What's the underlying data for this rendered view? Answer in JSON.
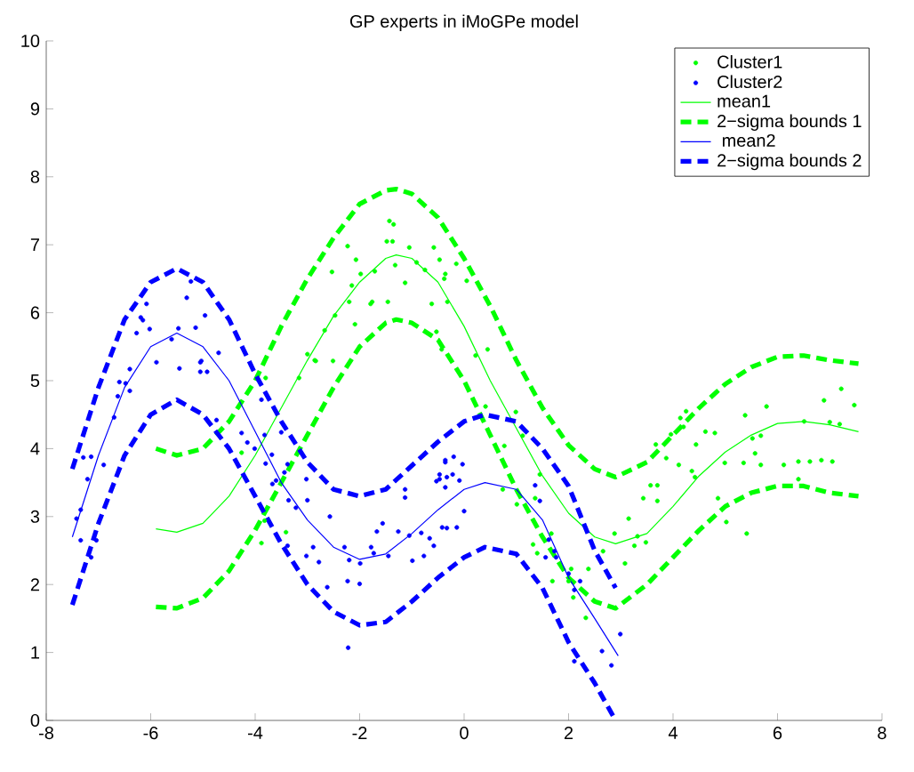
{
  "chart_data": {
    "type": "scatter",
    "title": "GP experts in iMoGPe model",
    "xlim": [
      -8,
      8
    ],
    "ylim": [
      0,
      10
    ],
    "xticks": [
      -8,
      -6,
      -4,
      -2,
      0,
      2,
      4,
      6,
      8
    ],
    "yticks": [
      0,
      1,
      2,
      3,
      4,
      5,
      6,
      7,
      8,
      9,
      10
    ],
    "legend": "top right",
    "grid": false,
    "series": [
      {
        "name": "Cluster1",
        "marker": "circle",
        "color": "#00ff00",
        "x": [
          -3.8,
          -3.36,
          -3.0,
          -2.86,
          -2.67,
          -2.53,
          -2.47,
          -2.23,
          -2.2,
          -2.15,
          -2.09,
          -2.07,
          -1.98,
          -1.76,
          -1.71,
          -1.79,
          -1.46,
          -1.48,
          -1.43,
          -1.35,
          -1.37,
          -1.32,
          -1.13,
          -1.05,
          -0.91,
          -0.75,
          -0.58,
          -0.62,
          -0.47,
          -0.36,
          -3.16,
          -0.15,
          -0.38,
          0.05,
          -0.32,
          -0.53,
          0.22,
          0.45,
          -0.43,
          0.41,
          0.77,
          0.99,
          1.12,
          0.74,
          1.01,
          1.36,
          1.45,
          1.32,
          1.4,
          1.67,
          1.69,
          2.0,
          2.09,
          2.33,
          2.05,
          2.38,
          2.66,
          2.88,
          3.08,
          3.15,
          3.26,
          3.32,
          3.48,
          3.43,
          3.57,
          3.7,
          3.7,
          3.67,
          3.87,
          3.96,
          4.14,
          4.25,
          4.2,
          4.11,
          4.36,
          4.42,
          4.44,
          4.62,
          4.8,
          4.86,
          5.02,
          4.99,
          5.38,
          5.35,
          5.41,
          5.52,
          5.57,
          5.68,
          5.68,
          5.79,
          6.12,
          6.4,
          6.4,
          6.51,
          6.62,
          6.84,
          6.89,
          7.05,
          7.0,
          7.19,
          7.22,
          7.47,
          -3.82,
          -3.88,
          -3.41,
          -4.26,
          -2.84,
          -2.51
        ],
        "values": [
          5.04,
          6.0,
          5.39,
          5.3,
          5.74,
          6.6,
          5.96,
          6.98,
          6.16,
          6.4,
          5.83,
          6.78,
          6.57,
          6.16,
          6.61,
          6.13,
          6.16,
          7.05,
          7.35,
          7.3,
          7.05,
          6.7,
          6.44,
          6.96,
          6.74,
          6.63,
          6.96,
          6.13,
          6.78,
          6.57,
          5.04,
          6.72,
          6.5,
          6.47,
          6.16,
          5.72,
          5.37,
          5.46,
          5.46,
          4.62,
          4.04,
          4.54,
          4.19,
          3.4,
          3.18,
          3.27,
          3.62,
          2.59,
          2.46,
          2.75,
          2.05,
          2.05,
          1.81,
          1.51,
          2.23,
          2.23,
          2.49,
          2.75,
          2.31,
          2.97,
          2.57,
          2.71,
          2.62,
          3.27,
          3.46,
          3.46,
          3.23,
          4.06,
          3.86,
          4.21,
          4.45,
          4.55,
          4.32,
          3.76,
          3.67,
          3.58,
          4.06,
          4.25,
          4.23,
          3.27,
          2.92,
          3.79,
          4.49,
          3.79,
          2.75,
          4.15,
          3.93,
          3.76,
          4.19,
          4.62,
          3.76,
          3.81,
          3.55,
          4.4,
          3.81,
          3.83,
          4.71,
          3.81,
          4.39,
          4.36,
          4.88,
          4.64,
          2.94,
          2.61,
          2.77,
          3.94,
          5.29,
          5.29
        ]
      },
      {
        "name": "Cluster2",
        "marker": "circle",
        "color": "#0000ff",
        "x": [
          -7.42,
          -7.34,
          -7.29,
          -7.14,
          -7.21,
          -7.34,
          -7.14,
          -7.04,
          -6.9,
          -6.7,
          -6.63,
          -6.6,
          -6.48,
          -6.4,
          -5.89,
          -5.45,
          -5.05,
          -4.92,
          -5.05,
          -4.74,
          -4.26,
          -4.15,
          -4.01,
          -3.88,
          -3.82,
          -3.8,
          -3.67,
          -3.68,
          -3.5,
          -3.6,
          -3.44,
          -3.38,
          -3.36,
          -3.22,
          -3.38,
          -3.02,
          -3.0,
          -3.02,
          -2.89,
          -2.78,
          -2.57,
          -2.62,
          -2.29,
          -2.23,
          -2.2,
          -2.22,
          -2.0,
          -1.99,
          -1.78,
          -1.73,
          -1.67,
          -1.56,
          -1.45,
          -1.26,
          -1.13,
          -1.13,
          -1.05,
          -0.99,
          -0.82,
          -0.77,
          -0.66,
          -0.58,
          -0.53,
          -0.47,
          -0.36,
          -0.33,
          -6.4,
          -6.27,
          -6.19,
          -6.15,
          -6.08,
          -6.02,
          -5.6,
          -5.47,
          -5.31,
          -5.23,
          -5.14,
          -5.03,
          -4.96,
          -4.7,
          -0.2,
          -0.36,
          -0.47,
          -0.33,
          -0.22,
          -0.09,
          -0.03,
          -0.36,
          -0.42,
          -0.14,
          0.0,
          1.36,
          1.45,
          1.62,
          1.73,
          1.76,
          1.56,
          2.0,
          2.22,
          2.11,
          2.11,
          2.64,
          2.82,
          2.99
        ],
        "values": [
          2.97,
          3.1,
          3.87,
          3.88,
          3.55,
          2.65,
          2.4,
          2.65,
          3.76,
          4.46,
          4.77,
          4.98,
          4.96,
          4.85,
          5.27,
          5.18,
          5.13,
          5.13,
          5.27,
          4.42,
          4.23,
          4.09,
          4.0,
          4.72,
          4.2,
          3.78,
          3.48,
          3.91,
          4.24,
          3.53,
          3.65,
          3.77,
          3.24,
          3.13,
          2.57,
          3.55,
          3.24,
          2.42,
          2.55,
          2.33,
          3.0,
          1.96,
          2.55,
          2.05,
          2.36,
          1.07,
          2.01,
          2.31,
          2.55,
          2.46,
          2.78,
          2.9,
          2.42,
          2.78,
          3.4,
          3.28,
          2.72,
          2.35,
          2.76,
          2.42,
          2.68,
          2.57,
          3.52,
          3.55,
          3.83,
          2.83,
          5.17,
          5.7,
          5.93,
          5.89,
          6.13,
          5.76,
          5.61,
          5.77,
          6.22,
          6.46,
          5.78,
          5.29,
          5.96,
          5.41,
          3.88,
          3.8,
          3.62,
          3.58,
          3.62,
          3.53,
          3.77,
          3.43,
          2.84,
          2.84,
          3.08,
          3.46,
          3.23,
          2.66,
          2.49,
          2.4,
          2.4,
          2.16,
          2.05,
          1.92,
          0.87,
          1.02,
          0.81,
          1.27
        ]
      },
      {
        "name": "mean1",
        "type": "line",
        "line_style": "solid",
        "marker": "none",
        "color": "#00ff00",
        "x": [
          -5.9,
          -5.5,
          -5,
          -4.5,
          -4,
          -3.5,
          -3,
          -2.5,
          -2,
          -1.5,
          -1.3,
          -1,
          -0.5,
          0,
          0.5,
          1,
          1.5,
          2,
          2.5,
          2.9,
          3.5,
          4,
          4.5,
          5,
          5.5,
          6,
          6.5,
          7,
          7.55
        ],
        "values": [
          2.82,
          2.77,
          2.9,
          3.3,
          3.9,
          4.6,
          5.3,
          5.95,
          6.45,
          6.8,
          6.85,
          6.8,
          6.45,
          5.8,
          5.0,
          4.3,
          3.6,
          3.05,
          2.7,
          2.6,
          2.75,
          3.15,
          3.6,
          3.95,
          4.2,
          4.37,
          4.4,
          4.35,
          4.25
        ]
      },
      {
        "name": "2−sigma bounds 1",
        "type": "line",
        "line_style": "dashed",
        "marker": "none",
        "color": "#00ff00",
        "x": [
          -5.9,
          -5.5,
          -5,
          -4.5,
          -4,
          -3.5,
          -3,
          -2.5,
          -2,
          -1.5,
          -1.3,
          -1,
          -0.5,
          0,
          0.5,
          1,
          1.5,
          2,
          2.5,
          2.9,
          3.5,
          4,
          4.5,
          5,
          5.5,
          6,
          6.5,
          7,
          7.55
        ],
        "values": [
          4.0,
          3.9,
          4.0,
          4.4,
          5.0,
          5.8,
          6.5,
          7.1,
          7.6,
          7.8,
          7.82,
          7.75,
          7.4,
          6.8,
          6.1,
          5.3,
          4.6,
          4.05,
          3.7,
          3.58,
          3.8,
          4.2,
          4.6,
          4.95,
          5.2,
          5.35,
          5.37,
          5.3,
          5.25
        ]
      },
      {
        "type": "line",
        "line_style": "dashed",
        "marker": "none",
        "color": "#00ff00",
        "x": [
          -5.9,
          -5.5,
          -5,
          -4.5,
          -4,
          -3.5,
          -3,
          -2.5,
          -2,
          -1.5,
          -1.3,
          -1,
          -0.5,
          0,
          0.5,
          1,
          1.5,
          2,
          2.5,
          2.9,
          3.5,
          4,
          4.5,
          5,
          5.5,
          6,
          6.5,
          7,
          7.55
        ],
        "values": [
          1.67,
          1.65,
          1.8,
          2.2,
          2.8,
          3.5,
          4.2,
          4.9,
          5.5,
          5.85,
          5.9,
          5.85,
          5.6,
          5.0,
          4.2,
          3.4,
          2.7,
          2.1,
          1.75,
          1.65,
          2.0,
          2.4,
          2.8,
          3.15,
          3.35,
          3.45,
          3.45,
          3.35,
          3.3
        ]
      },
      {
        "name": " mean2",
        "type": "line",
        "line_style": "solid",
        "marker": "none",
        "color": "#0000ff",
        "x": [
          -7.5,
          -7,
          -6.5,
          -6,
          -5.5,
          -5,
          -4.5,
          -4,
          -3.5,
          -3,
          -2.5,
          -2,
          -1.5,
          -1,
          -0.5,
          0,
          0.4,
          1,
          1.5,
          2,
          2.5,
          2.95
        ],
        "values": [
          2.7,
          3.9,
          4.9,
          5.5,
          5.7,
          5.5,
          5.0,
          4.25,
          3.5,
          2.95,
          2.55,
          2.37,
          2.45,
          2.75,
          3.1,
          3.4,
          3.5,
          3.4,
          2.95,
          2.1,
          1.5,
          0.95
        ]
      },
      {
        "name": "2−sigma bounds 2",
        "type": "line",
        "line_style": "dashed",
        "marker": "none",
        "color": "#0000ff",
        "x": [
          -7.5,
          -7,
          -6.5,
          -6,
          -5.5,
          -5,
          -4.5,
          -4,
          -3.5,
          -3,
          -2.5,
          -2,
          -1.5,
          -1,
          -0.5,
          0,
          0.4,
          1,
          1.5,
          2,
          2.5,
          2.9
        ],
        "values": [
          3.7,
          4.9,
          5.9,
          6.45,
          6.65,
          6.45,
          5.9,
          5.1,
          4.4,
          3.8,
          3.4,
          3.3,
          3.4,
          3.75,
          4.1,
          4.4,
          4.5,
          4.4,
          4.0,
          3.45,
          2.5,
          1.95
        ]
      },
      {
        "type": "line",
        "line_style": "dashed",
        "marker": "none",
        "color": "#0000ff",
        "x": [
          -7.5,
          -7,
          -6.5,
          -6,
          -5.5,
          -5,
          -4.5,
          -4,
          -3.5,
          -3,
          -2.5,
          -2,
          -1.5,
          -1,
          -0.5,
          0,
          0.4,
          1,
          1.5,
          2,
          2.5,
          2.9
        ],
        "values": [
          1.7,
          2.9,
          3.9,
          4.5,
          4.72,
          4.5,
          4.0,
          3.3,
          2.6,
          2.0,
          1.6,
          1.4,
          1.45,
          1.75,
          2.1,
          2.4,
          2.55,
          2.45,
          1.95,
          1.15,
          0.55,
          0.0
        ]
      }
    ]
  }
}
